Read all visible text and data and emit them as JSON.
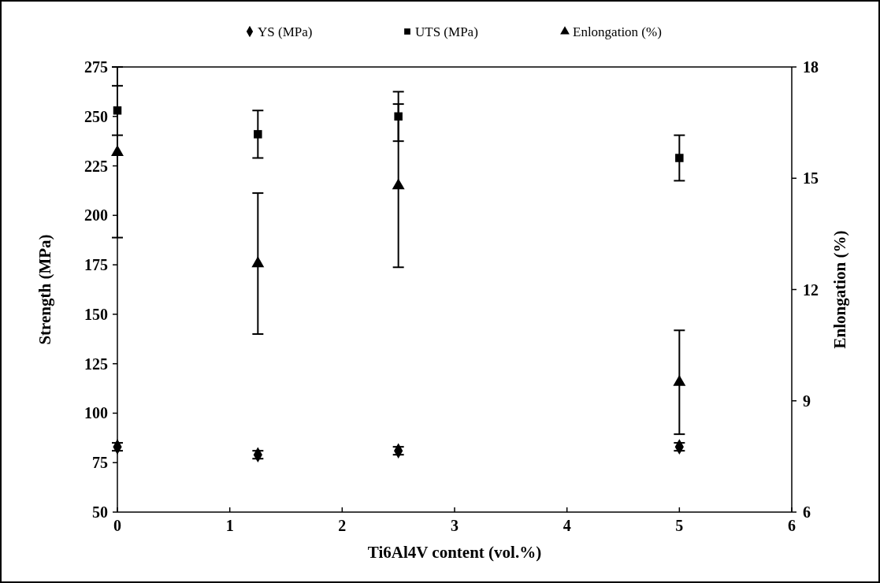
{
  "chart_data": {
    "type": "scatter",
    "xlabel": "Ti6Al4V content (vol.%)",
    "ylabel": "Strength (MPa)",
    "y2label": "Enlongation (%)",
    "x": [
      0,
      1.25,
      2.5,
      5
    ],
    "xlim": [
      0,
      6
    ],
    "xticks": [
      0,
      1,
      2,
      3,
      4,
      5,
      6
    ],
    "ylim": [
      50,
      275
    ],
    "yticks": [
      50,
      75,
      100,
      125,
      150,
      175,
      200,
      225,
      250,
      275
    ],
    "y2lim": [
      6,
      18
    ],
    "y2ticks": [
      6,
      9,
      12,
      15,
      18
    ],
    "grid": false,
    "legend": "top",
    "series": [
      {
        "name": "YS (MPa)",
        "color": "#000000",
        "marker": "diamond",
        "values": [
          83,
          79,
          81,
          83
        ],
        "errors": [
          2,
          2,
          2,
          2
        ]
      },
      {
        "name": "UTS (MPa)",
        "color": "#000000",
        "marker": "square",
        "values": [
          253,
          241,
          250,
          229
        ],
        "errors": [
          12.5,
          12,
          12.5,
          11.5
        ]
      },
      {
        "name": "Enlongation (%)",
        "color": "#000000",
        "marker": "triangle",
        "axis": "y2",
        "values": [
          15.7,
          12.7,
          14.8,
          9.5
        ],
        "errors": [
          2.3,
          1.9,
          2.2,
          1.4
        ]
      }
    ]
  }
}
